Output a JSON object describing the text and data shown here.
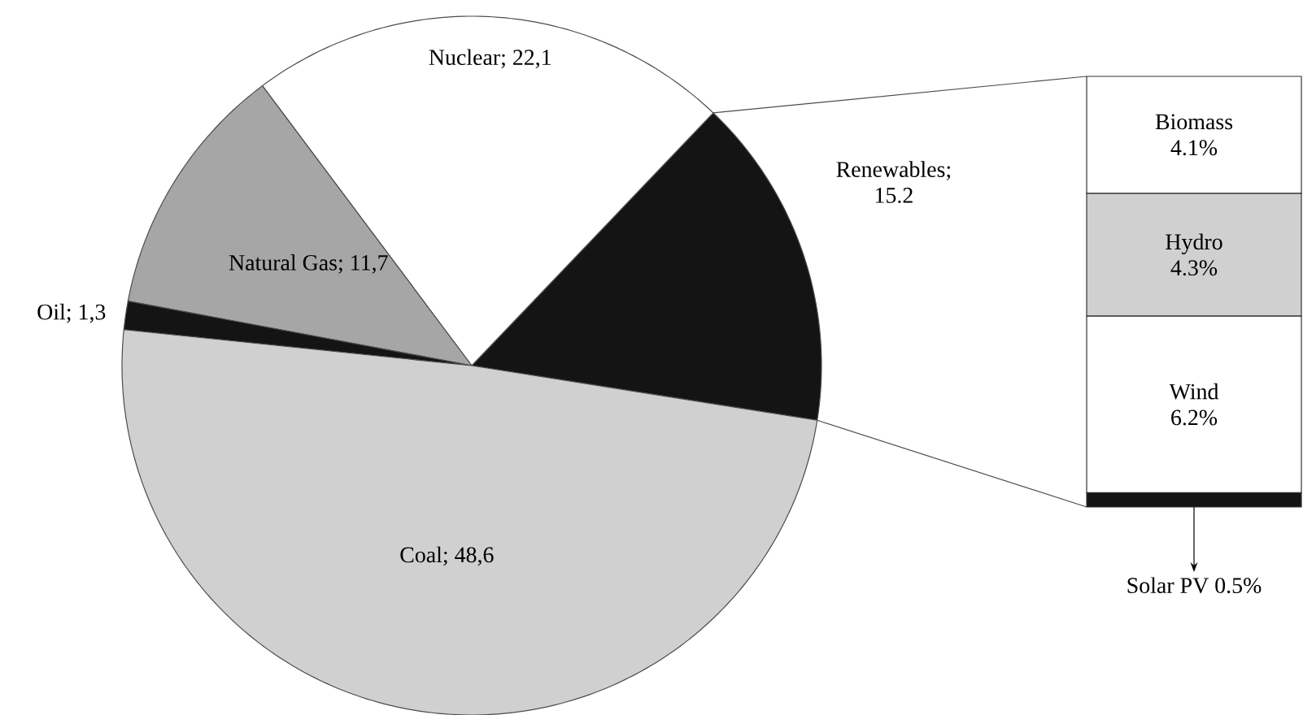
{
  "chart_data": [
    {
      "type": "pie",
      "categories": [
        "Renewables; 15.2",
        "Nuclear; 22,1",
        "Natural Gas; 11,7",
        "Oil; 1,3",
        "Coal; 48,6"
      ],
      "values": [
        15.2,
        22.1,
        11.7,
        1.3,
        48.6
      ],
      "colors": [
        "#141414",
        "#ffffff",
        "#a6a6a6",
        "#141414",
        "#d0d0d0"
      ]
    },
    {
      "type": "bar",
      "stacked": true,
      "categories": [
        null
      ],
      "series": [
        {
          "name": "Solar PV",
          "color": "#141414",
          "values": [
            0.5
          ],
          "value_labels": [
            "0.5%"
          ]
        },
        {
          "name": "Wind",
          "color": "#ffffff",
          "values": [
            6.2
          ],
          "value_labels": [
            "6.2%"
          ]
        },
        {
          "name": "Hydro",
          "color": "#d0d0d0",
          "values": [
            4.3
          ],
          "value_labels": [
            "4.3%"
          ]
        },
        {
          "name": "Biomass",
          "color": "#ffffff",
          "values": [
            4.1
          ],
          "value_labels": [
            "4.1%"
          ]
        }
      ]
    }
  ]
}
